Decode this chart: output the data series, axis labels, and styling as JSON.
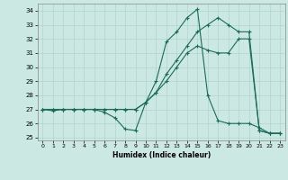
{
  "xlabel": "Humidex (Indice chaleur)",
  "bg_color": "#cce8e2",
  "line_color": "#1a6b5a",
  "grid_color": "#b0d4cc",
  "xlim": [
    -0.5,
    23.5
  ],
  "ylim": [
    24.8,
    34.5
  ],
  "yticks": [
    25,
    26,
    27,
    28,
    29,
    30,
    31,
    32,
    33,
    34
  ],
  "xticks": [
    0,
    1,
    2,
    3,
    4,
    5,
    6,
    7,
    8,
    9,
    10,
    11,
    12,
    13,
    14,
    15,
    16,
    17,
    18,
    19,
    20,
    21,
    22,
    23
  ],
  "line1_x": [
    0,
    1,
    2,
    3,
    4,
    5,
    6,
    7,
    8,
    9,
    10,
    11,
    12,
    13,
    14,
    15,
    16,
    17,
    18,
    19,
    20,
    21,
    22,
    23
  ],
  "line1_y": [
    27.0,
    26.9,
    27.0,
    27.0,
    27.0,
    27.0,
    26.8,
    26.4,
    25.6,
    25.5,
    27.5,
    29.0,
    31.8,
    32.5,
    33.5,
    34.1,
    28.0,
    26.2,
    26.0,
    26.0,
    26.0,
    25.7,
    25.3,
    25.3
  ],
  "line2_x": [
    0,
    1,
    2,
    3,
    4,
    5,
    6,
    7,
    8,
    9,
    10,
    11,
    12,
    13,
    14,
    15,
    16,
    17,
    18,
    19,
    20,
    21,
    22,
    23
  ],
  "line2_y": [
    27.0,
    27.0,
    27.0,
    27.0,
    27.0,
    27.0,
    27.0,
    27.0,
    27.0,
    27.0,
    27.5,
    28.2,
    29.0,
    30.0,
    31.0,
    31.5,
    31.2,
    31.0,
    31.0,
    32.0,
    32.0,
    25.5,
    25.3,
    25.3
  ],
  "line3_x": [
    0,
    1,
    2,
    3,
    4,
    5,
    6,
    7,
    8,
    9,
    10,
    11,
    12,
    13,
    14,
    15,
    16,
    17,
    18,
    19,
    20,
    21,
    22,
    23
  ],
  "line3_y": [
    27.0,
    27.0,
    27.0,
    27.0,
    27.0,
    27.0,
    27.0,
    27.0,
    27.0,
    27.0,
    27.5,
    28.2,
    29.5,
    30.5,
    31.5,
    32.5,
    33.0,
    33.5,
    33.0,
    32.5,
    32.5,
    25.5,
    25.3,
    25.3
  ]
}
